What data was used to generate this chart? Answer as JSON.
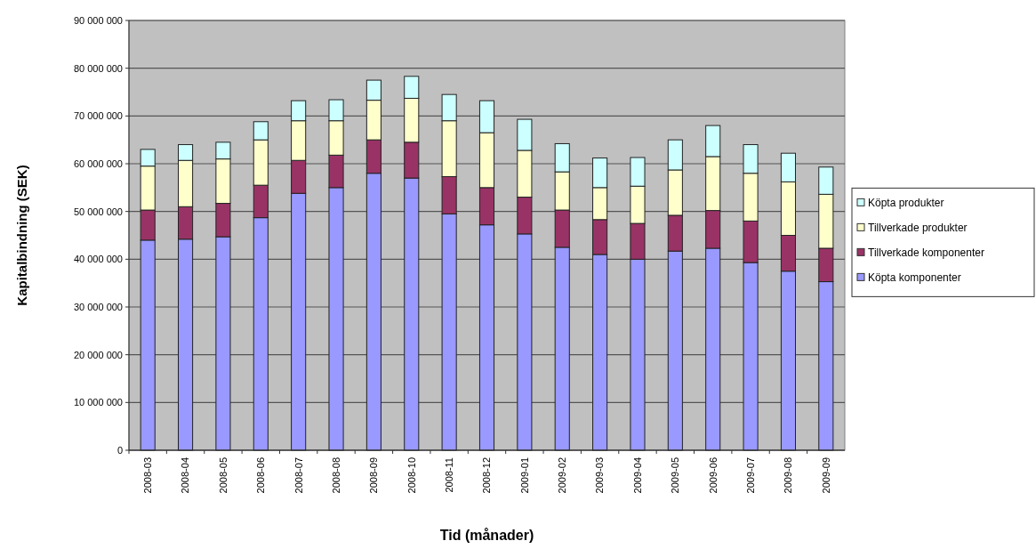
{
  "chart_data": {
    "type": "bar",
    "stacked": true,
    "xlabel": "Tid (månader)",
    "ylabel": "Kapitalbindning (SEK)",
    "categories": [
      "2008-03",
      "2008-04",
      "2008-05",
      "2008-06",
      "2008-07",
      "2008-08",
      "2008-09",
      "2008-10",
      "2008-11",
      "2008-12",
      "2009-01",
      "2009-02",
      "2009-03",
      "2009-04",
      "2009-05",
      "2009-06",
      "2009-07",
      "2009-08",
      "2009-09"
    ],
    "series": [
      {
        "name": "Köpta komponenter",
        "color": "#9999ff",
        "values": [
          44000000,
          44200000,
          44700000,
          48700000,
          53800000,
          55000000,
          58000000,
          57000000,
          49500000,
          47200000,
          45300000,
          42500000,
          41000000,
          40000000,
          41700000,
          42300000,
          39300000,
          37500000,
          35300000
        ]
      },
      {
        "name": "Tillverkade komponenter",
        "color": "#993366",
        "values": [
          6300000,
          6800000,
          7000000,
          6800000,
          6900000,
          6800000,
          7000000,
          7500000,
          7800000,
          7800000,
          7700000,
          7800000,
          7300000,
          7500000,
          7500000,
          7900000,
          8700000,
          7500000,
          7000000
        ]
      },
      {
        "name": "Tillverkade produkter",
        "color": "#ffffcc",
        "values": [
          9200000,
          9700000,
          9300000,
          9500000,
          8300000,
          7200000,
          8300000,
          9200000,
          11700000,
          11500000,
          9800000,
          8000000,
          6700000,
          7800000,
          9500000,
          11300000,
          10000000,
          11200000,
          11300000
        ]
      },
      {
        "name": "Köpta produkter",
        "color": "#ccffff",
        "values": [
          3500000,
          3300000,
          3500000,
          3800000,
          4200000,
          4400000,
          4200000,
          4600000,
          5500000,
          6700000,
          6500000,
          5900000,
          6200000,
          6000000,
          6300000,
          6500000,
          6000000,
          6000000,
          5700000
        ]
      }
    ],
    "ylim": [
      0,
      90000000
    ],
    "yticks": [
      0,
      {
        "value": 10000000,
        "label": "10 000 000"
      },
      {
        "value": 20000000,
        "label": "20 000 000"
      },
      {
        "value": 30000000,
        "label": "30 000 000"
      },
      {
        "value": 40000000,
        "label": "40 000 000"
      },
      {
        "value": 50000000,
        "label": "50 000 000"
      },
      {
        "value": 60000000,
        "label": "60 000 000"
      },
      {
        "value": 70000000,
        "label": "70 000 000"
      },
      {
        "value": 80000000,
        "label": "80 000 000"
      },
      {
        "value": 90000000,
        "label": "90 000 000"
      }
    ],
    "grid": "y",
    "legend": "right"
  }
}
